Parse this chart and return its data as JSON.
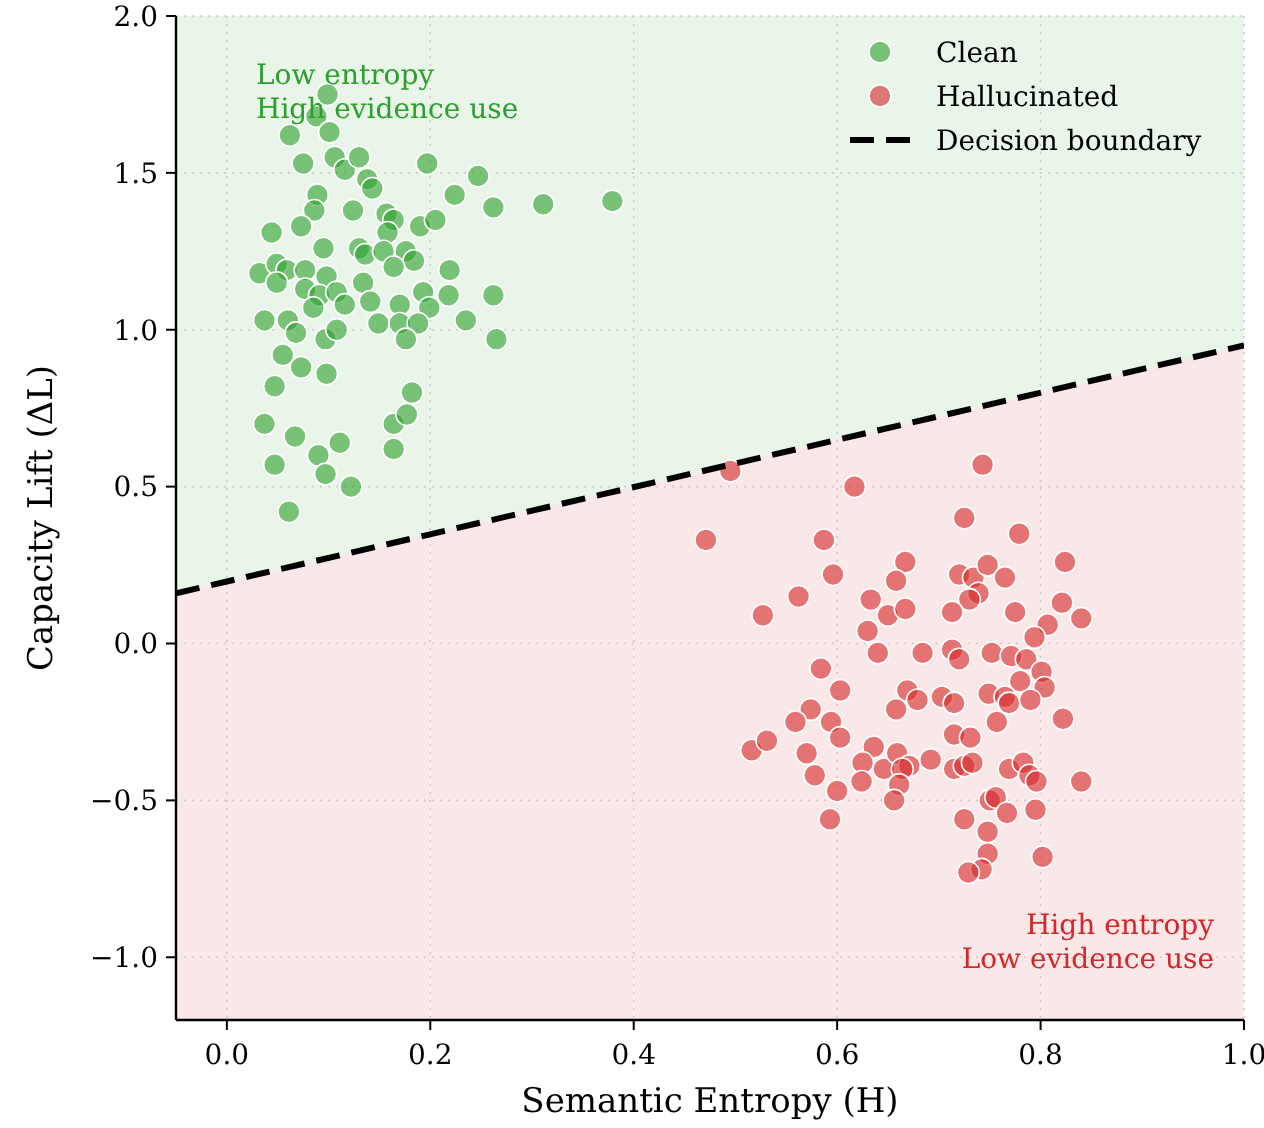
{
  "chart_data": {
    "type": "scatter",
    "xlabel": "Semantic Entropy (H)",
    "ylabel": "Capacity Lift (ΔL)",
    "xlim": [
      -0.05,
      1.0
    ],
    "ylim": [
      -1.2,
      2.0
    ],
    "xticks": [
      {
        "value": 0,
        "label": "0.0"
      },
      {
        "value": 0.2,
        "label": "0.2"
      },
      {
        "value": 0.4,
        "label": "0.4"
      },
      {
        "value": 0.6,
        "label": "0.6"
      },
      {
        "value": 0.8,
        "label": "0.8"
      },
      {
        "value": 1,
        "label": "1.0"
      }
    ],
    "yticks": [
      {
        "value": -1,
        "label": "−1.0"
      },
      {
        "value": -0.5,
        "label": "−0.5"
      },
      {
        "value": 0,
        "label": "0.0"
      },
      {
        "value": 0.5,
        "label": "0.5"
      },
      {
        "value": 1,
        "label": "1.0"
      },
      {
        "value": 1.5,
        "label": "1.5"
      },
      {
        "value": 2,
        "label": "2.0"
      }
    ],
    "grid": true,
    "legend": "top right",
    "marker": "circle",
    "annotations": [
      "Low entropy\nHigh evidence use",
      "High entropy\nLow evidence use"
    ],
    "series": [
      {
        "name": "Clean",
        "color": "#2ca02c",
        "x": [
          0.099,
          0.088,
          0.062,
          0.101,
          0.075,
          0.106,
          0.116,
          0.13,
          0.138,
          0.143,
          0.197,
          0.247,
          0.224,
          0.262,
          0.311,
          0.379,
          0.089,
          0.086,
          0.124,
          0.044,
          0.073,
          0.157,
          0.164,
          0.158,
          0.19,
          0.205,
          0.095,
          0.13,
          0.136,
          0.154,
          0.176,
          0.184,
          0.164,
          0.032,
          0.049,
          0.059,
          0.049,
          0.077,
          0.098,
          0.134,
          0.219,
          0.077,
          0.091,
          0.108,
          0.116,
          0.085,
          0.141,
          0.17,
          0.193,
          0.199,
          0.218,
          0.262,
          0.037,
          0.06,
          0.068,
          0.097,
          0.108,
          0.149,
          0.17,
          0.188,
          0.176,
          0.235,
          0.265,
          0.055,
          0.073,
          0.098,
          0.047,
          0.037,
          0.067,
          0.09,
          0.111,
          0.047,
          0.097,
          0.122,
          0.164,
          0.177,
          0.182,
          0.164,
          0.061
        ],
        "values": [
          1.75,
          1.68,
          1.62,
          1.63,
          1.53,
          1.55,
          1.51,
          1.55,
          1.48,
          1.45,
          1.53,
          1.49,
          1.43,
          1.39,
          1.4,
          1.41,
          1.43,
          1.38,
          1.38,
          1.31,
          1.33,
          1.37,
          1.35,
          1.31,
          1.33,
          1.35,
          1.26,
          1.26,
          1.24,
          1.25,
          1.25,
          1.22,
          1.2,
          1.18,
          1.21,
          1.19,
          1.15,
          1.19,
          1.17,
          1.15,
          1.19,
          1.13,
          1.11,
          1.12,
          1.08,
          1.07,
          1.09,
          1.08,
          1.12,
          1.07,
          1.11,
          1.11,
          1.03,
          1.03,
          0.99,
          0.97,
          1.0,
          1.02,
          1.02,
          1.02,
          0.97,
          1.03,
          0.97,
          0.92,
          0.88,
          0.86,
          0.82,
          0.7,
          0.66,
          0.6,
          0.64,
          0.57,
          0.54,
          0.5,
          0.7,
          0.73,
          0.8,
          0.62,
          0.42
        ]
      },
      {
        "name": "Hallucinated",
        "color": "#d62728",
        "x": [
          0.495,
          0.743,
          0.617,
          0.471,
          0.725,
          0.779,
          0.587,
          0.596,
          0.667,
          0.658,
          0.562,
          0.527,
          0.633,
          0.65,
          0.667,
          0.63,
          0.72,
          0.734,
          0.748,
          0.765,
          0.739,
          0.73,
          0.713,
          0.824,
          0.821,
          0.84,
          0.775,
          0.807,
          0.794,
          0.64,
          0.684,
          0.713,
          0.72,
          0.752,
          0.771,
          0.786,
          0.801,
          0.78,
          0.804,
          0.584,
          0.603,
          0.669,
          0.679,
          0.658,
          0.703,
          0.715,
          0.749,
          0.765,
          0.769,
          0.79,
          0.574,
          0.559,
          0.594,
          0.603,
          0.757,
          0.822,
          0.516,
          0.531,
          0.57,
          0.578,
          0.636,
          0.625,
          0.624,
          0.646,
          0.659,
          0.671,
          0.664,
          0.661,
          0.692,
          0.715,
          0.731,
          0.715,
          0.725,
          0.733,
          0.769,
          0.783,
          0.789,
          0.796,
          0.84,
          0.6,
          0.593,
          0.656,
          0.75,
          0.756,
          0.767,
          0.795,
          0.725,
          0.748,
          0.748,
          0.742,
          0.729,
          0.802
        ],
        "values": [
          0.55,
          0.57,
          0.5,
          0.33,
          0.4,
          0.35,
          0.33,
          0.22,
          0.26,
          0.2,
          0.15,
          0.09,
          0.14,
          0.09,
          0.11,
          0.04,
          0.22,
          0.21,
          0.25,
          0.21,
          0.16,
          0.14,
          0.1,
          0.26,
          0.13,
          0.08,
          0.1,
          0.06,
          0.02,
          -0.03,
          -0.03,
          -0.02,
          -0.05,
          -0.03,
          -0.04,
          -0.05,
          -0.09,
          -0.12,
          -0.14,
          -0.08,
          -0.15,
          -0.15,
          -0.18,
          -0.21,
          -0.17,
          -0.19,
          -0.16,
          -0.17,
          -0.19,
          -0.18,
          -0.21,
          -0.25,
          -0.25,
          -0.3,
          -0.25,
          -0.24,
          -0.34,
          -0.31,
          -0.35,
          -0.42,
          -0.33,
          -0.38,
          -0.44,
          -0.4,
          -0.35,
          -0.39,
          -0.4,
          -0.45,
          -0.37,
          -0.29,
          -0.3,
          -0.4,
          -0.39,
          -0.38,
          -0.4,
          -0.38,
          -0.42,
          -0.44,
          -0.44,
          -0.47,
          -0.56,
          -0.5,
          -0.5,
          -0.49,
          -0.54,
          -0.53,
          -0.56,
          -0.6,
          -0.67,
          -0.72,
          -0.73,
          -0.68
        ]
      },
      {
        "name": "Decision boundary",
        "type": "line",
        "color": "#000000",
        "line_style": "dashed",
        "marker": "none",
        "x": [
          -0.05,
          1.0
        ],
        "values": [
          0.16,
          0.95
        ]
      }
    ]
  }
}
